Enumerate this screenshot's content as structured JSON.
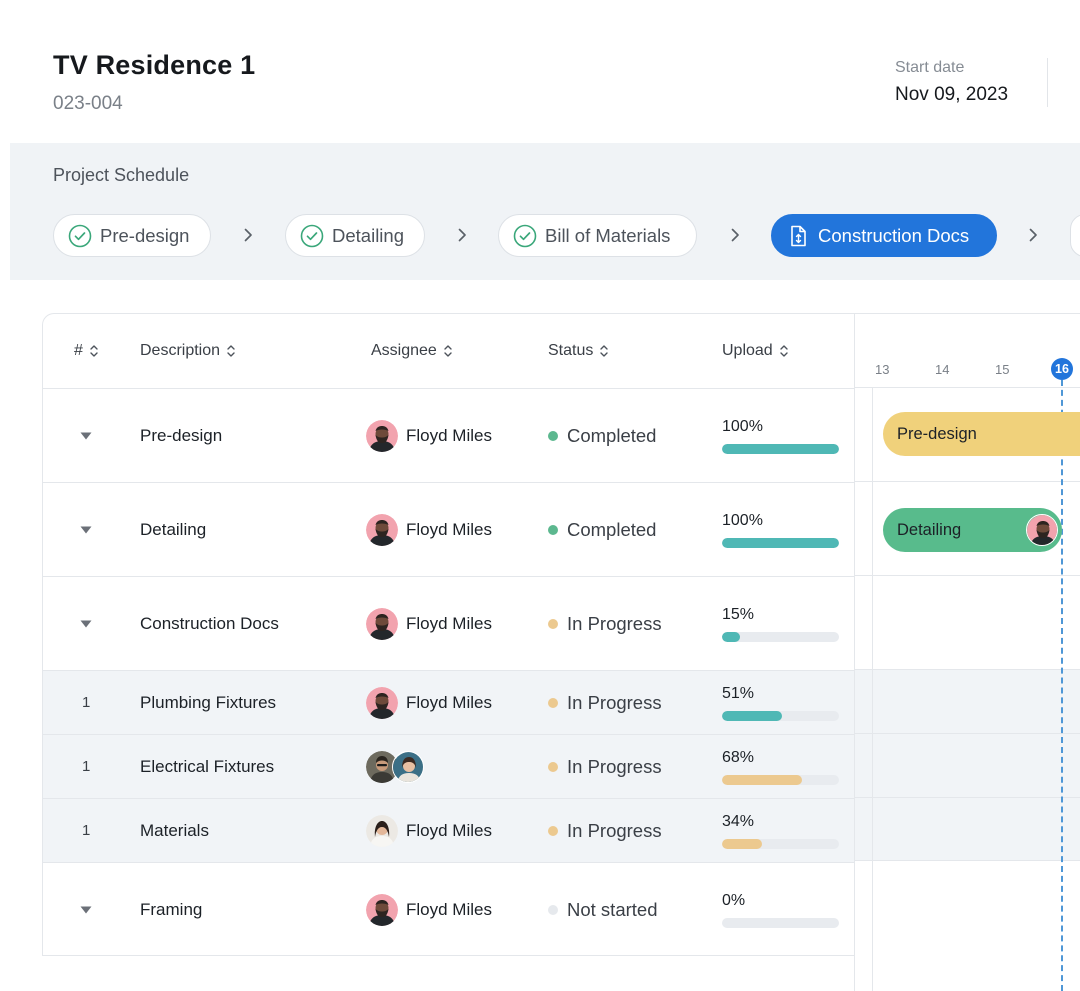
{
  "header": {
    "title": "TV Residence 1",
    "code": "023-004",
    "start_label": "Start date",
    "start_value": "Nov 09, 2023"
  },
  "schedule": {
    "title": "Project Schedule",
    "steps": [
      {
        "label": "Pre-design",
        "state": "done"
      },
      {
        "label": "Detailing",
        "state": "done"
      },
      {
        "label": "Bill of Materials",
        "state": "done"
      },
      {
        "label": "Construction Docs",
        "state": "active"
      }
    ]
  },
  "table": {
    "columns": [
      "#",
      "Description",
      "Assignee",
      "Status",
      "Upload"
    ],
    "rows": [
      {
        "num": "",
        "description": "Pre-design",
        "assignee": "Floyd Miles",
        "status": "Completed",
        "upload": "100%",
        "progress": 1.0
      },
      {
        "num": "",
        "description": "Detailing",
        "assignee": "Floyd Miles",
        "status": "Completed",
        "upload": "100%",
        "progress": 1.0
      },
      {
        "num": "",
        "description": "Construction Docs",
        "assignee": "Floyd Miles",
        "status": "In Progress",
        "upload": "15%",
        "progress": 0.15
      },
      {
        "num": "1",
        "description": "Plumbing Fixtures",
        "assignee": "Floyd Miles",
        "status": "In Progress",
        "upload": "51%",
        "progress": 0.51
      },
      {
        "num": "1",
        "description": "Electrical Fixtures",
        "assignee": "",
        "status": "In Progress",
        "upload": "68%",
        "progress": 0.68
      },
      {
        "num": "1",
        "description": "Materials",
        "assignee": "Floyd Miles",
        "status": "In Progress",
        "upload": "34%",
        "progress": 0.34
      },
      {
        "num": "",
        "description": "Framing",
        "assignee": "Floyd Miles",
        "status": "Not started",
        "upload": "0%",
        "progress": 0.0
      }
    ]
  },
  "gantt": {
    "days": [
      "13",
      "14",
      "15"
    ],
    "today": "16",
    "bars": [
      {
        "label": "Pre-design"
      },
      {
        "label": "Detailing"
      }
    ]
  },
  "colors": {
    "accent": "#2275db",
    "completed": "#5cb88f",
    "in_progress": "#ecc98f",
    "not_started": "#e6e9ed",
    "progress_teal": "#4fb8b5",
    "progress_sand": "#ecc98f",
    "gantt_predesign": "#f0d17b",
    "gantt_detailing": "#58bb8c"
  }
}
